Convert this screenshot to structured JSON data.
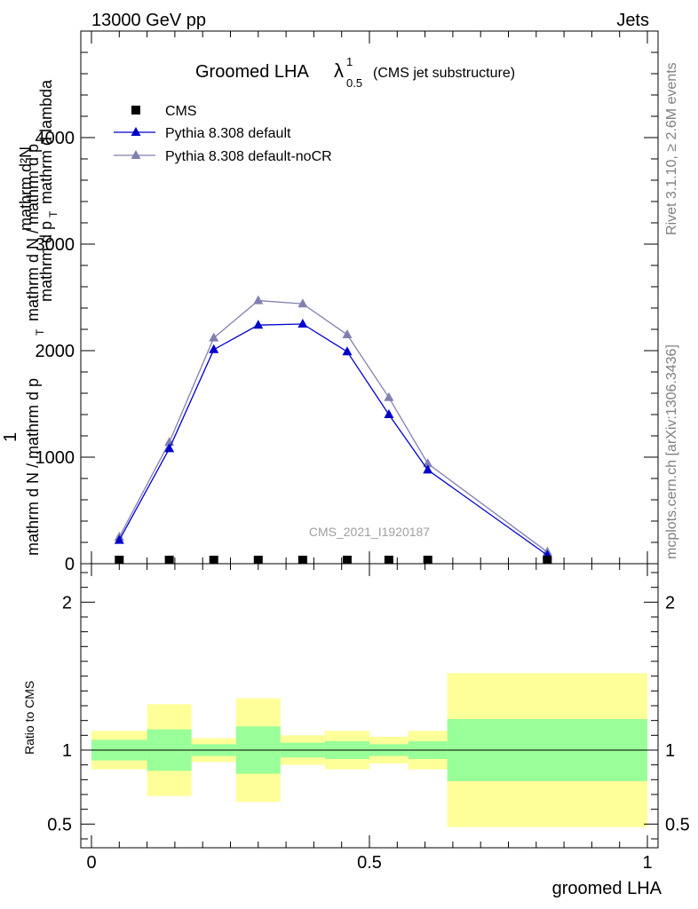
{
  "header": {
    "energy_label": "13000 GeV pp",
    "category_label": "Jets",
    "side_rivet": "Rivet 3.1.10, ≥ 2.6M events",
    "side_mcplots": "mcplots.cern.ch [arXiv:1306.3436]",
    "watermark": "CMS_2021_I1920187"
  },
  "chart_data": [
    {
      "type": "line",
      "title_main": "Groomed LHA",
      "title_lambda": "λ",
      "title_sup": "1",
      "title_sub": "0.5",
      "title_suffix": "(CMS jet substructure)",
      "ylabel_top": "mathrm d²N",
      "ylabel_top_bottom": "mathrm d p",
      "ylabel_top_sub": "T",
      "ylabel_top_tail": "mathrm d lambda",
      "ylabel_one": "1",
      "ylabel_bottom": "mathrm d N / mathrm d p",
      "ylabel_bottom_sub": "T",
      "ylabel_bottom_tail": "mathrm d N / mathrm d p",
      "xlim": [
        0,
        1
      ],
      "ylim": [
        0,
        5000
      ],
      "yticks": [
        0,
        1000,
        2000,
        3000,
        4000
      ],
      "ytick_labels": [
        "0",
        "1000",
        "2000",
        "3000",
        "4000"
      ],
      "legend": [
        {
          "name": "CMS",
          "color": "#000000",
          "marker": "square"
        },
        {
          "name": "Pythia 8.308 default",
          "color": "#0000cc",
          "marker": "triangle"
        },
        {
          "name": "Pythia 8.308 default-noCR",
          "color": "#8080b0",
          "marker": "triangle"
        }
      ],
      "series": [
        {
          "name": "CMS",
          "x": [
            0.05,
            0.14,
            0.22,
            0.3,
            0.38,
            0.46,
            0.535,
            0.605,
            0.82
          ],
          "y": [
            10,
            10,
            10,
            10,
            10,
            10,
            10,
            10,
            10
          ]
        },
        {
          "name": "Pythia 8.308 default",
          "x": [
            0.05,
            0.14,
            0.22,
            0.3,
            0.38,
            0.46,
            0.535,
            0.605,
            0.82
          ],
          "y": [
            220,
            1080,
            2010,
            2240,
            2250,
            1990,
            1400,
            880,
            80
          ]
        },
        {
          "name": "Pythia 8.308 default-noCR",
          "x": [
            0.05,
            0.14,
            0.22,
            0.3,
            0.38,
            0.46,
            0.535,
            0.605,
            0.82
          ],
          "y": [
            250,
            1140,
            2120,
            2470,
            2440,
            2150,
            1560,
            940,
            110
          ]
        }
      ]
    },
    {
      "type": "bar",
      "ylabel": "Ratio to CMS",
      "xlabel": "groomed LHA",
      "xlim": [
        0,
        1
      ],
      "ylim": [
        0.34,
        2.26
      ],
      "yticks": [
        0.5,
        1,
        2
      ],
      "ytick_labels": [
        "0.5",
        "1",
        "2"
      ],
      "xticks": [
        0,
        0.5,
        1
      ],
      "xtick_labels": [
        "0",
        "0.5",
        "1"
      ],
      "reference_line": 1,
      "bands": [
        {
          "x0": 0.0,
          "x1": 0.1,
          "green": [
            0.93,
            1.07
          ],
          "yellow": [
            0.87,
            1.13
          ]
        },
        {
          "x0": 0.1,
          "x1": 0.18,
          "green": [
            0.86,
            1.14
          ],
          "yellow": [
            0.69,
            1.31
          ]
        },
        {
          "x0": 0.18,
          "x1": 0.26,
          "green": [
            0.96,
            1.04
          ],
          "yellow": [
            0.92,
            1.08
          ]
        },
        {
          "x0": 0.26,
          "x1": 0.34,
          "green": [
            0.84,
            1.16
          ],
          "yellow": [
            0.65,
            1.35
          ]
        },
        {
          "x0": 0.34,
          "x1": 0.42,
          "green": [
            0.95,
            1.05
          ],
          "yellow": [
            0.9,
            1.1
          ]
        },
        {
          "x0": 0.42,
          "x1": 0.5,
          "green": [
            0.94,
            1.06
          ],
          "yellow": [
            0.87,
            1.13
          ]
        },
        {
          "x0": 0.5,
          "x1": 0.57,
          "green": [
            0.96,
            1.04
          ],
          "yellow": [
            0.91,
            1.09
          ]
        },
        {
          "x0": 0.57,
          "x1": 0.64,
          "green": [
            0.94,
            1.06
          ],
          "yellow": [
            0.87,
            1.13
          ]
        },
        {
          "x0": 0.64,
          "x1": 1.0,
          "green": [
            0.79,
            1.21
          ],
          "yellow": [
            0.48,
            1.52
          ]
        }
      ]
    }
  ]
}
